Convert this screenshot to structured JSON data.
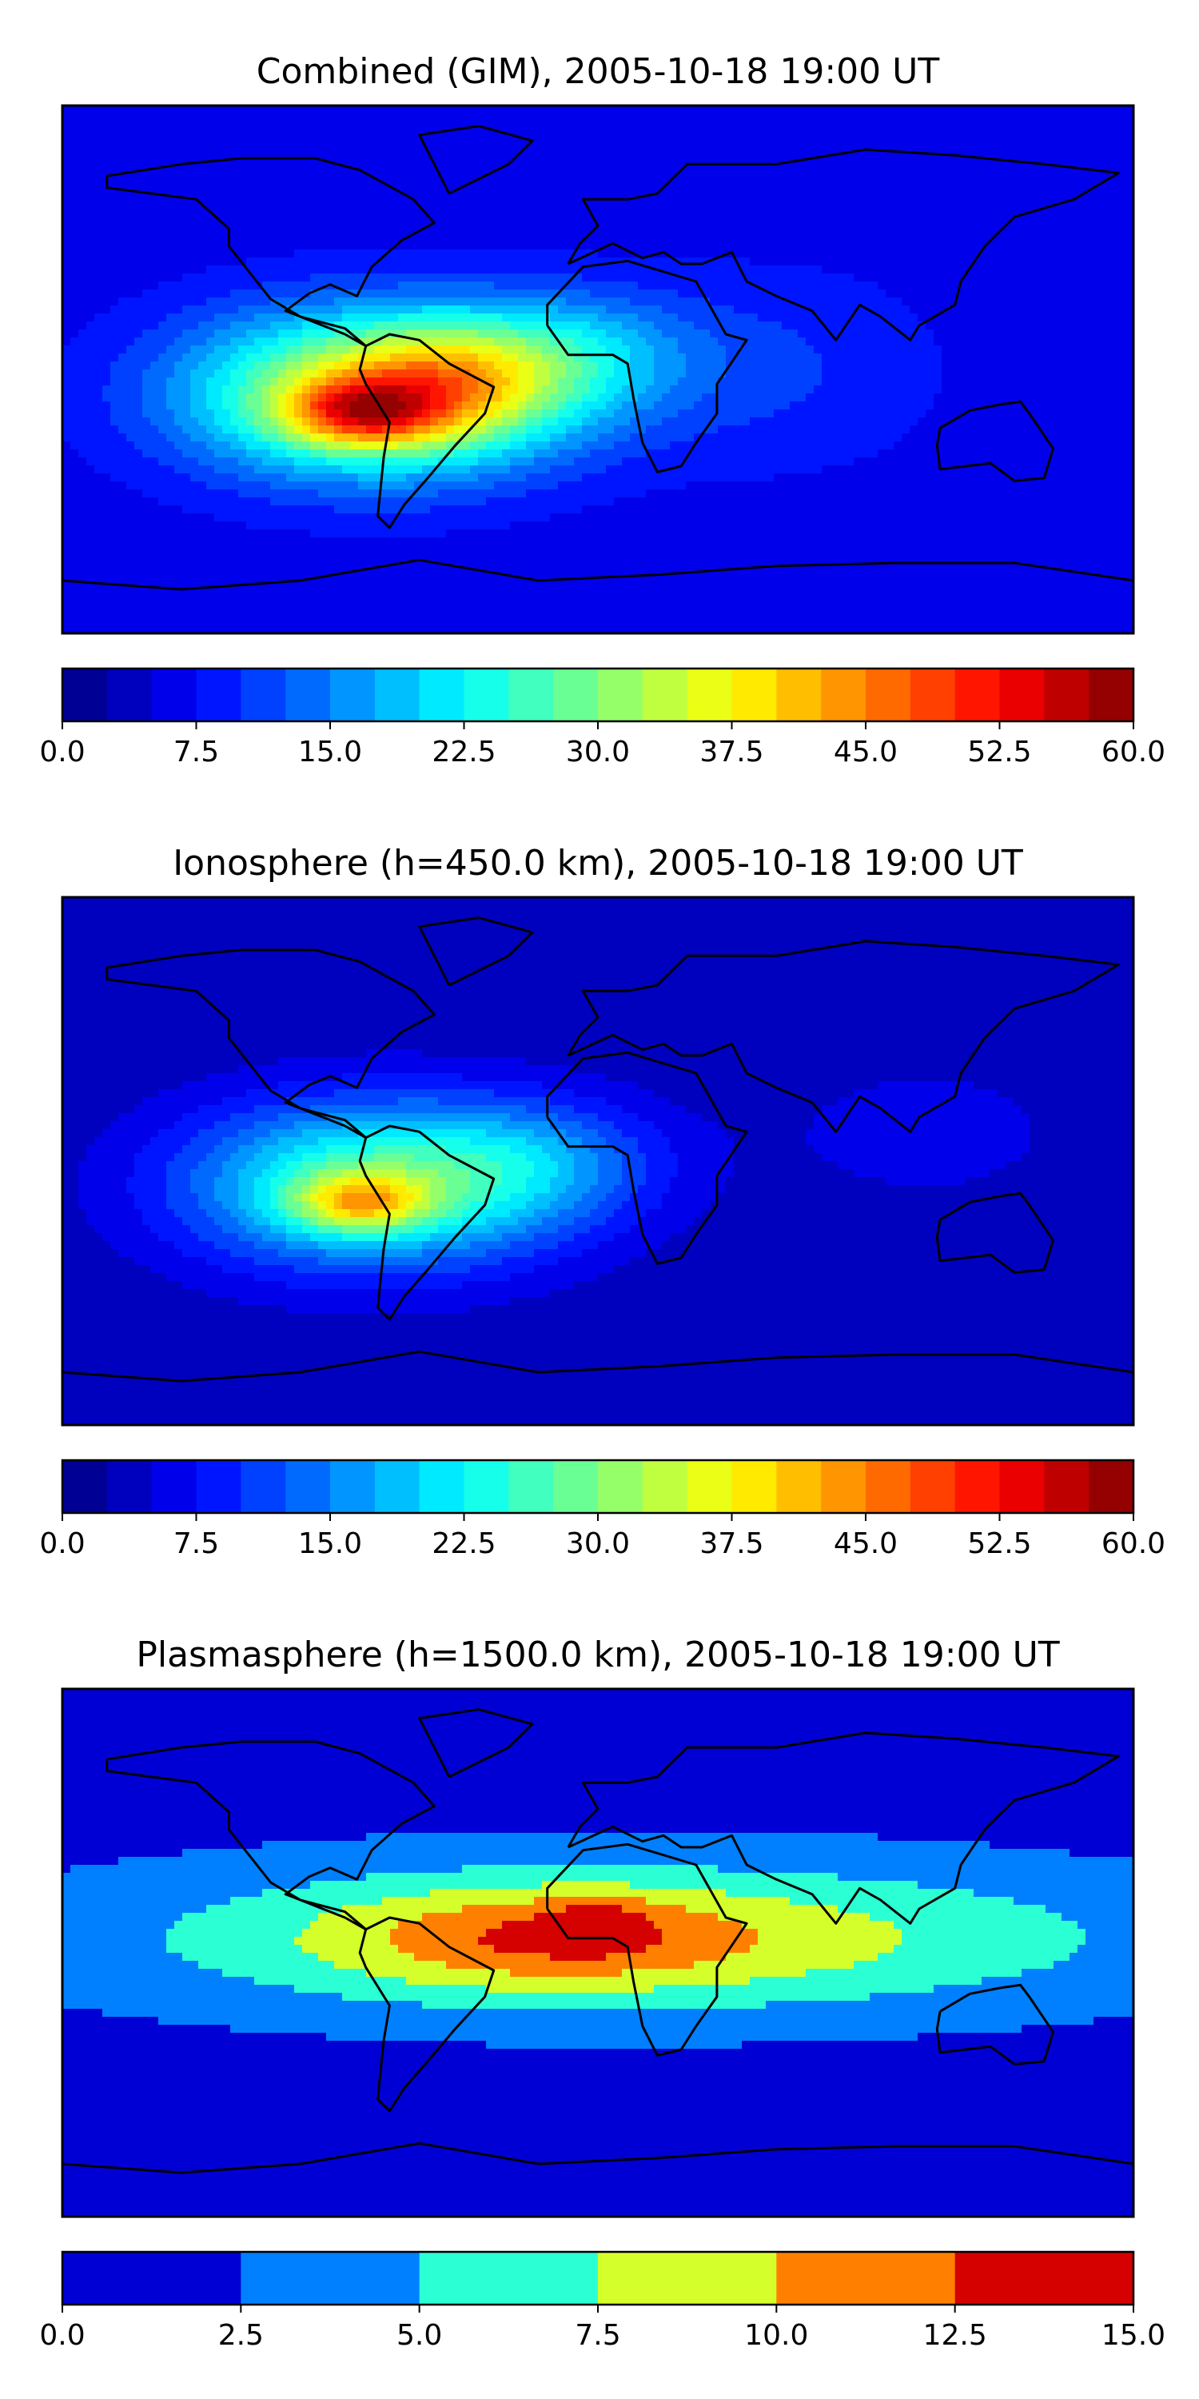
{
  "panels": [
    {
      "title": "Combined (GIM), 2005-10-18 19:00 UT",
      "field": "combined",
      "colormap": "jet",
      "colorbar": {
        "vmin": 0,
        "vmax": 60,
        "step": 2.5,
        "ticks": [
          "0.0",
          "7.5",
          "15.0",
          "22.5",
          "30.0",
          "37.5",
          "45.0",
          "52.5",
          "60.0"
        ]
      }
    },
    {
      "title": "Ionosphere  (h=450.0 km), 2005-10-18 19:00 UT",
      "field": "ionosphere",
      "colormap": "jet",
      "colorbar": {
        "vmin": 0,
        "vmax": 60,
        "step": 2.5,
        "ticks": [
          "0.0",
          "7.5",
          "15.0",
          "22.5",
          "30.0",
          "37.5",
          "45.0",
          "52.5",
          "60.0"
        ]
      }
    },
    {
      "title": "Plasmasphere (h=1500.0 km), 2005-10-18 19:00 UT",
      "field": "plasmasphere",
      "colormap": "jet",
      "colorbar": {
        "vmin": 0,
        "vmax": 15,
        "step": 2.5,
        "ticks": [
          "0.0",
          "2.5",
          "5.0",
          "7.5",
          "10.0",
          "12.5",
          "15.0"
        ]
      }
    }
  ]
}
